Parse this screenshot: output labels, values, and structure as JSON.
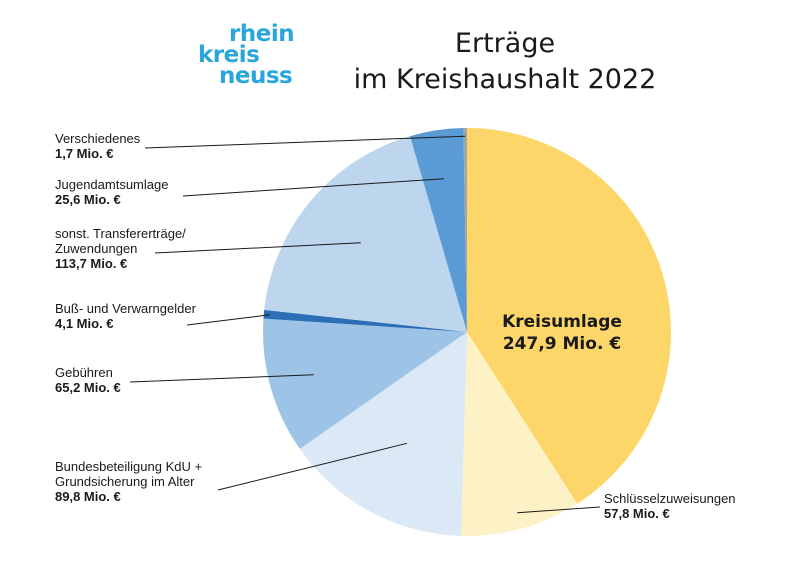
{
  "logo": {
    "line1": "rhein",
    "line2": "kreis",
    "line3": "neuss"
  },
  "chart_data": {
    "type": "pie",
    "title_line1": "Erträge",
    "title_line2": "im Kreishaushalt 2022",
    "unit": "Mio. €",
    "slices": [
      {
        "name": "Kreisumlage",
        "value": 247.9,
        "value_label": "247,9 Mio. €",
        "color": "#fcd668"
      },
      {
        "name": "Schlüsselzuweisungen",
        "value": 57.8,
        "value_label": "57,8 Mio. €",
        "color": "#fdf1c6"
      },
      {
        "name": "Bundesbeteiligung KdU + Grundsicherung im Alter",
        "label_lines": [
          "Bundesbeteiligung KdU +",
          "Grundsicherung im Alter"
        ],
        "value": 89.8,
        "value_label": "89,8 Mio. €",
        "color": "#dbe8f5"
      },
      {
        "name": "Gebühren",
        "value": 65.2,
        "value_label": "65,2 Mio. €",
        "color": "#9dc3e7"
      },
      {
        "name": "Buß- und Verwarngelder",
        "value": 4.1,
        "value_label": "4,1 Mio. €",
        "color": "#2c6fb5"
      },
      {
        "name": "sonst. Transfererträge/ Zuwendungen",
        "label_lines": [
          "sonst. Transfererträge/",
          "Zuwendungen"
        ],
        "value": 113.7,
        "value_label": "113,7 Mio. €",
        "color": "#bdd6ee"
      },
      {
        "name": "Jugendamtsumlage",
        "value": 25.6,
        "value_label": "25,6 Mio. €",
        "color": "#5b9bd5"
      },
      {
        "name": "Verschiedenes",
        "value": 1.7,
        "value_label": "1,7 Mio. €",
        "color": "#a6a6a6"
      }
    ],
    "legend": "none"
  }
}
